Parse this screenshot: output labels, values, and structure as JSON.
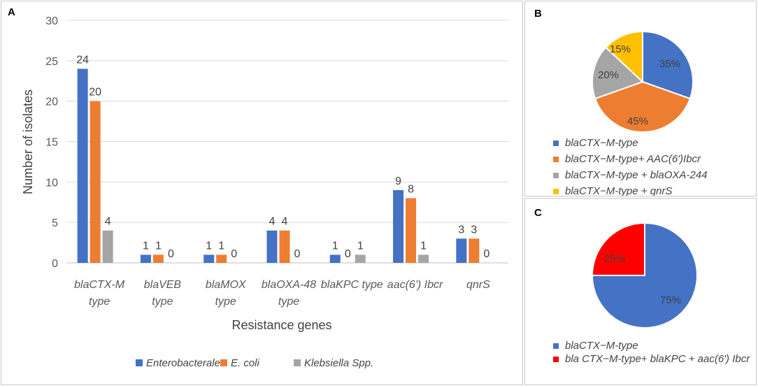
{
  "panels": {
    "a": "A",
    "b": "B",
    "c": "C"
  },
  "colors": {
    "enterobacterales": "#4472C4",
    "ecoli": "#ED7D31",
    "klebsiella": "#A5A5A5",
    "yellow": "#FFC000",
    "red": "#FF0000"
  },
  "chart_data": [
    {
      "type": "bar",
      "title": "",
      "xlabel": "Resistance genes",
      "ylabel": "Number of isolates",
      "ylim": [
        0,
        30
      ],
      "yticks": [
        "0",
        "5",
        "10",
        "15",
        "20",
        "25",
        "30"
      ],
      "categories": [
        [
          "blaCTX-M",
          "type"
        ],
        [
          "blaVEB",
          "type"
        ],
        [
          "blaMOX",
          "type"
        ],
        [
          "blaOXA-48",
          "type"
        ],
        [
          "blaKPC type"
        ],
        [
          "aac(6') Ibcr"
        ],
        [
          "qnrS"
        ]
      ],
      "series": [
        {
          "name": "Enterobacterales",
          "values": [
            24,
            1,
            1,
            4,
            1,
            9,
            3
          ]
        },
        {
          "name": "E. coli",
          "values": [
            20,
            1,
            1,
            4,
            0,
            8,
            3
          ]
        },
        {
          "name": "Klebsiella Spp.",
          "values": [
            4,
            0,
            0,
            0,
            1,
            1,
            0
          ]
        }
      ],
      "data_labels": [
        [
          "24",
          "20",
          "4"
        ],
        [
          "1",
          "1",
          "0"
        ],
        [
          "1",
          "1",
          "0"
        ],
        [
          "4",
          "4",
          "0"
        ],
        [
          "1",
          "0",
          "1"
        ],
        [
          "9",
          "8",
          "1"
        ],
        [
          "3",
          "3",
          "0"
        ]
      ],
      "legend_position": "bottom"
    },
    {
      "type": "pie",
      "title": "",
      "slices": [
        {
          "label": "blaCTX−M-type",
          "value": 35,
          "text": "35%"
        },
        {
          "label": "blaCTX−M-type+ AAC(6')Ibcr",
          "value": 45,
          "text": "45%"
        },
        {
          "label": "blaCTX−M-type + blaOXA-244",
          "value": 20,
          "text": "20%"
        },
        {
          "label": "blaCTX−M-type + qnrS",
          "value": 15,
          "text": "15%"
        }
      ],
      "legend_position": "bottom"
    },
    {
      "type": "pie",
      "title": "",
      "slices": [
        {
          "label": "blaCTX−M-type",
          "value": 75,
          "text": "75%"
        },
        {
          "label": "bla CTX−M-type+ blaKPC + aac(6') Ibcr",
          "value": 25,
          "text": "25%"
        }
      ],
      "legend_position": "bottom"
    }
  ]
}
